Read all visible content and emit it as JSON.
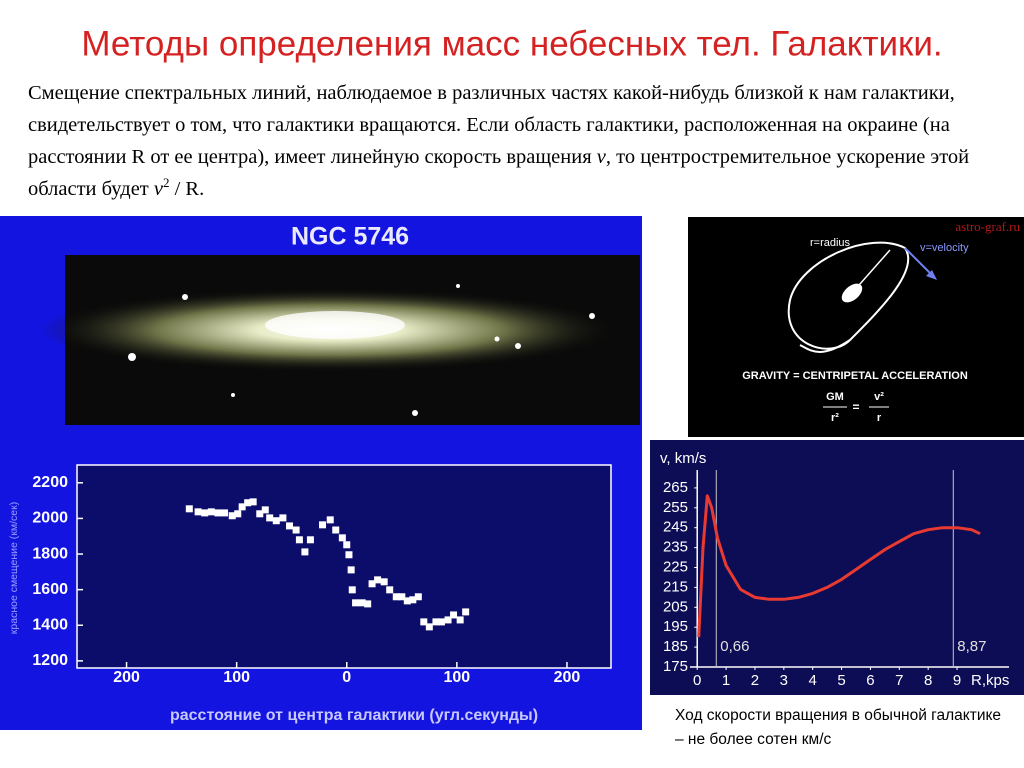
{
  "title": "Методы определения масс небесных тел. Галактики.",
  "paragraph": [
    "Смещение спектральных линий, наблюдаемое в различных частях какой-нибудь близкой к нам галактики, свидетельствует о том, что галактики вращаются. Если область галактики, расположенная на окраине (на расстоянии R от ее центра), имеет линейную скорость вращения ",
    "v",
    ", то центростремительное ускорение этой области будет ",
    "v",
    "2",
    " / R."
  ],
  "galaxy_label": "NGC 5746",
  "diagram": {
    "watermark": "astro-graf.ru",
    "radius_label": "r=radius",
    "velocity_label": "v=velocity",
    "equation_title": "GRAVITY = CENTRIPETAL ACCELERATION",
    "lhs_numerator": "GM",
    "lhs_denominator": "r²",
    "equals": "=",
    "rhs_numerator": "v²",
    "rhs_denominator": "r"
  },
  "caption": "Ход скорости вращения в обычной галактике – не более сотен км/с",
  "chart_data": [
    {
      "type": "scatter",
      "y_label": "красное смещение (км/сек)",
      "x_label": "расстояние от центра галактики (угл.секунды)",
      "color": "#ffffff",
      "x": [
        -143,
        -135,
        -129,
        -123,
        -117,
        -111,
        -104,
        -99,
        -95,
        -90,
        -85,
        -79,
        -74,
        -70,
        -64,
        -58,
        -52,
        -46,
        -43,
        -38,
        -33,
        -22,
        -15,
        -10,
        -4,
        0,
        2,
        4,
        5,
        8,
        14,
        19,
        23,
        28,
        34,
        39,
        45,
        50,
        55,
        60,
        65,
        70,
        75,
        81,
        86,
        92,
        97,
        103,
        108
      ],
      "values": [
        2054,
        2037,
        2031,
        2037,
        2031,
        2031,
        2015,
        2026,
        2065,
        2088,
        2093,
        2026,
        2048,
        2003,
        1987,
        2003,
        1958,
        1935,
        1880,
        1812,
        1880,
        1964,
        1992,
        1935,
        1891,
        1852,
        1796,
        1711,
        1599,
        1526,
        1526,
        1520,
        1633,
        1655,
        1644,
        1599,
        1560,
        1560,
        1537,
        1543,
        1560,
        1419,
        1391,
        1419,
        1419,
        1430,
        1458,
        1430,
        1475
      ],
      "xlim": [
        -245,
        240
      ],
      "ylim": [
        1160,
        2300
      ],
      "xticks": [
        {
          "value": -200,
          "label": "200"
        },
        {
          "value": -100,
          "label": "100"
        },
        0,
        100,
        200
      ],
      "yticks": [
        1200,
        1400,
        1600,
        1800,
        2000,
        2200
      ]
    },
    {
      "type": "line",
      "y_label": "v, km/s",
      "x_label": "R,kps",
      "color": "#e83a30",
      "x": [
        0.05,
        0.2,
        0.35,
        0.5,
        0.7,
        1.0,
        1.5,
        2.0,
        2.5,
        3.0,
        3.5,
        4.0,
        4.5,
        5.0,
        5.5,
        6.0,
        6.5,
        7.0,
        7.5,
        8.0,
        8.5,
        9.0,
        9.5,
        9.8
      ],
      "values": [
        190,
        235,
        261,
        255,
        240,
        226,
        214,
        210,
        209,
        209,
        210,
        212,
        215,
        219,
        224,
        229,
        234,
        238,
        242,
        244,
        245,
        245,
        244,
        242
      ],
      "xlim": [
        -0.25,
        10.8
      ],
      "ylim": [
        175,
        274
      ],
      "xticks": [
        0,
        1,
        2,
        3,
        4,
        5,
        6,
        7,
        8,
        9
      ],
      "yticks": [
        175,
        185,
        195,
        205,
        215,
        225,
        235,
        245,
        255,
        265
      ],
      "vlines": [
        {
          "value": 0.66,
          "label": "0,66"
        },
        {
          "value": 8.87,
          "label": "8,87"
        }
      ]
    }
  ]
}
